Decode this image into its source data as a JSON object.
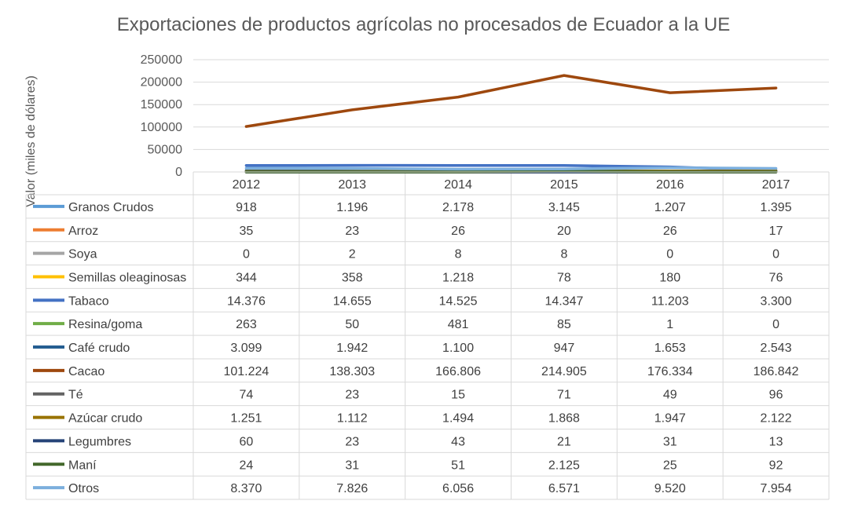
{
  "chart_data": {
    "type": "line",
    "title": "Exportaciones de productos agrícolas no procesados de Ecuador a la UE",
    "xlabel": "",
    "ylabel": "Valor (miles de dólares)",
    "ylim": [
      0,
      250000
    ],
    "yticks": [
      0,
      50000,
      100000,
      150000,
      200000,
      250000
    ],
    "ytick_labels": [
      "0",
      "50000",
      "100000",
      "150000",
      "200000",
      "250000"
    ],
    "grid": true,
    "legend": "data-table",
    "categories": [
      "2012",
      "2013",
      "2014",
      "2015",
      "2016",
      "2017"
    ],
    "series": [
      {
        "name": "Granos Crudos",
        "color": "#5B9BD5",
        "values": [
          918,
          1196,
          2178,
          3145,
          1207,
          1395
        ],
        "labels": [
          "918",
          "1.196",
          "2.178",
          "3.145",
          "1.207",
          "1.395"
        ]
      },
      {
        "name": "Arroz",
        "color": "#ED7D31",
        "values": [
          35,
          23,
          26,
          20,
          26,
          17
        ],
        "labels": [
          "35",
          "23",
          "26",
          "20",
          "26",
          "17"
        ]
      },
      {
        "name": "Soya",
        "color": "#A5A5A5",
        "values": [
          0,
          2,
          8,
          8,
          0,
          0
        ],
        "labels": [
          "0",
          "2",
          "8",
          "8",
          "0",
          "0"
        ]
      },
      {
        "name": "Semillas oleaginosas",
        "color": "#FFC000",
        "values": [
          344,
          358,
          1218,
          78,
          180,
          76
        ],
        "labels": [
          "344",
          "358",
          "1.218",
          "78",
          "180",
          "76"
        ]
      },
      {
        "name": "Tabaco",
        "color": "#4472C4",
        "values": [
          14376,
          14655,
          14525,
          14347,
          11203,
          3300
        ],
        "labels": [
          "14.376",
          "14.655",
          "14.525",
          "14.347",
          "11.203",
          "3.300"
        ]
      },
      {
        "name": "Resina/goma",
        "color": "#70AD47",
        "values": [
          263,
          50,
          481,
          85,
          1,
          0
        ],
        "labels": [
          "263",
          "50",
          "481",
          "85",
          "1",
          "0"
        ]
      },
      {
        "name": "Café crudo",
        "color": "#255E91",
        "values": [
          3099,
          1942,
          1100,
          947,
          1653,
          2543
        ],
        "labels": [
          "3.099",
          "1.942",
          "1.100",
          "947",
          "1.653",
          "2.543"
        ]
      },
      {
        "name": "Cacao",
        "color": "#9E480E",
        "values": [
          101224,
          138303,
          166806,
          214905,
          176334,
          186842
        ],
        "labels": [
          "101.224",
          "138.303",
          "166.806",
          "214.905",
          "176.334",
          "186.842"
        ]
      },
      {
        "name": "Té",
        "color": "#636363",
        "values": [
          74,
          23,
          15,
          71,
          49,
          96
        ],
        "labels": [
          "74",
          "23",
          "15",
          "71",
          "49",
          "96"
        ]
      },
      {
        "name": "Azúcar crudo",
        "color": "#997300",
        "values": [
          1251,
          1112,
          1494,
          1868,
          1947,
          2122
        ],
        "labels": [
          "1.251",
          "1.112",
          "1.494",
          "1.868",
          "1.947",
          "2.122"
        ]
      },
      {
        "name": "Legumbres",
        "color": "#264478",
        "values": [
          60,
          23,
          43,
          21,
          31,
          13
        ],
        "labels": [
          "60",
          "23",
          "43",
          "21",
          "31",
          "13"
        ]
      },
      {
        "name": "Maní",
        "color": "#43682B",
        "values": [
          24,
          31,
          51,
          2125,
          25,
          92
        ],
        "labels": [
          "24",
          "31",
          "51",
          "2.125",
          "25",
          "92"
        ]
      },
      {
        "name": "Otros",
        "color": "#7CAFDD",
        "values": [
          8370,
          7826,
          6056,
          6571,
          9520,
          7954
        ],
        "labels": [
          "8.370",
          "7.826",
          "6.056",
          "6.571",
          "9.520",
          "7.954"
        ]
      }
    ]
  }
}
